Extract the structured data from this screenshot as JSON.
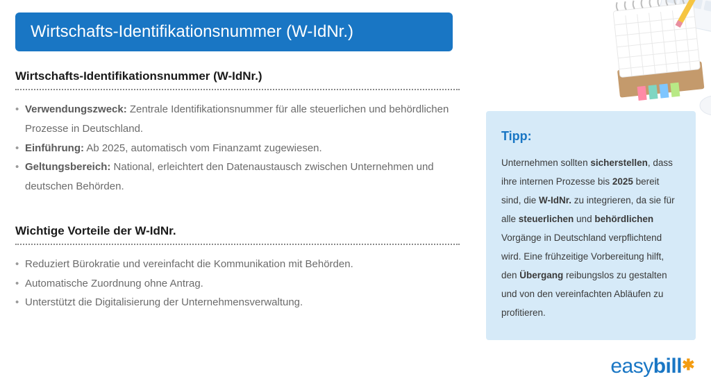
{
  "page": {
    "banner_title": "Wirtschafts-Identifikationsnummer (W-IdNr.)",
    "banner_bg": "#1976c4",
    "banner_text_color": "#ffffff",
    "background": "#ffffff"
  },
  "section1": {
    "heading": "Wirtschafts-Identifikationsnummer (W-IdNr.)",
    "bullets": [
      {
        "lead": "Verwendungszweck:",
        "text": " Zentrale Identifikationsnummer für alle steuerlichen und behördlichen Prozesse in Deutschland."
      },
      {
        "lead": "Einführung:",
        "text": " Ab 2025, automatisch vom Finanzamt zugewiesen."
      },
      {
        "lead": "Geltungsbereich:",
        "text": " National, erleichtert den Datenaustausch zwischen Unternehmen und deutschen Behörden."
      }
    ]
  },
  "section2": {
    "heading": "Wichtige Vorteile der W-IdNr.",
    "bullets": [
      {
        "lead": "",
        "text": "Reduziert Bürokratie und vereinfacht die Kommunikation mit Behörden."
      },
      {
        "lead": "",
        "text": "Automatische Zuordnung ohne Antrag."
      },
      {
        "lead": "",
        "text": "Unterstützt die Digitalisierung der Unternehmensverwaltung."
      }
    ]
  },
  "tip": {
    "heading": "Tipp:",
    "box_bg": "#d6eaf8",
    "heading_color": "#1976c4",
    "body_parts": [
      "Unternehmen sollten ",
      "<b>sicherstellen</b>",
      ", dass ihre internen Prozesse bis ",
      "<b>2025</b>",
      " bereit sind, die ",
      "<b>W-IdNr.</b>",
      " zu integrieren, da sie für alle ",
      "<b>steuerlichen</b>",
      " und ",
      "<b>behördlichen</b>",
      " Vorgänge in Deutschland verpflichtend wird. Eine frühzeitige Vorbereitung hilft, den ",
      "<b>Übergang</b>",
      " reibungslos zu gestalten und von den vereinfachten Abläufen zu profitieren."
    ]
  },
  "logo": {
    "part1": "easy",
    "part2": "bill",
    "star": "✱",
    "color_main": "#1976c4",
    "color_star": "#f39c12"
  },
  "colors": {
    "text_muted": "#6b6b6b",
    "heading": "#1a1a1a",
    "dotted_rule": "#888888"
  }
}
